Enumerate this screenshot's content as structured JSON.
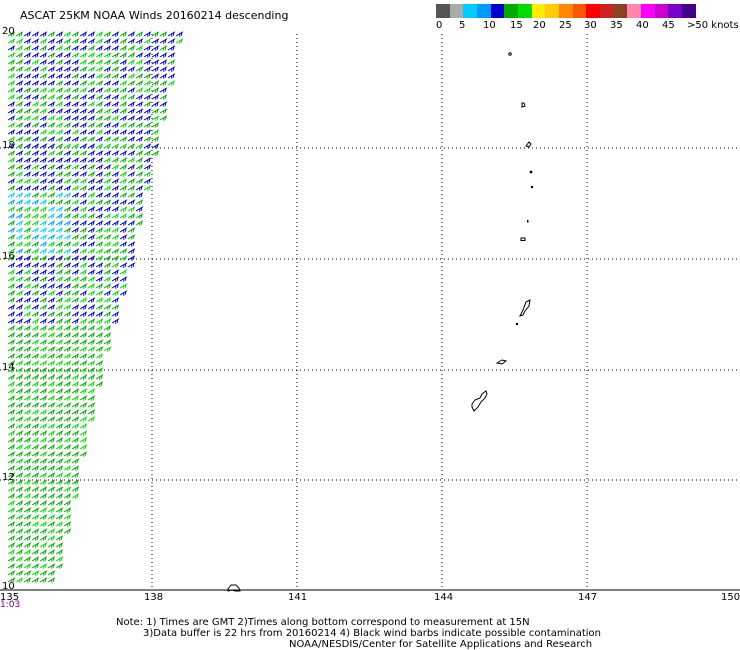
{
  "header": {
    "title": "ASCAT 25KM NOAA Winds 20160214 descending"
  },
  "wind_scale": {
    "labels": [
      "0",
      "5",
      "10",
      "15",
      "20",
      "25",
      "30",
      "35",
      "40",
      "45",
      ">50 knots"
    ],
    "colors": [
      "#555555",
      "#aaaaaa",
      "#00ccff",
      "#0099ff",
      "#0000cc",
      "#00aa00",
      "#00dd00",
      "#ffee00",
      "#ffcc00",
      "#ff8800",
      "#ff5500",
      "#ff0000",
      "#cc2222",
      "#884422",
      "#ff88aa",
      "#ff00ff",
      "#cc00cc",
      "#7700cc",
      "#440088"
    ]
  },
  "axes": {
    "lon_labels": [
      "135",
      "138",
      "141",
      "144",
      "147",
      "150"
    ],
    "lat_labels": [
      "20",
      "18",
      "16",
      "14",
      "12",
      "10"
    ]
  },
  "time_label": "1:03",
  "footer": {
    "line1": "Note: 1) Times are GMT 2)Times along bottom correspond to measurement at 15N",
    "line2": "3)Data buffer is 22 hrs from 20160214 4) Black wind barbs indicate possible contamination",
    "line3": "NOAA/NESDIS/Center for Satellite Applications and Research"
  },
  "map_colors": {
    "barb_colors": [
      "#0000cc",
      "#00aa00",
      "#00dd00",
      "#0099ff",
      "#00ccff"
    ],
    "grid": "#000000",
    "land": "#000000"
  }
}
